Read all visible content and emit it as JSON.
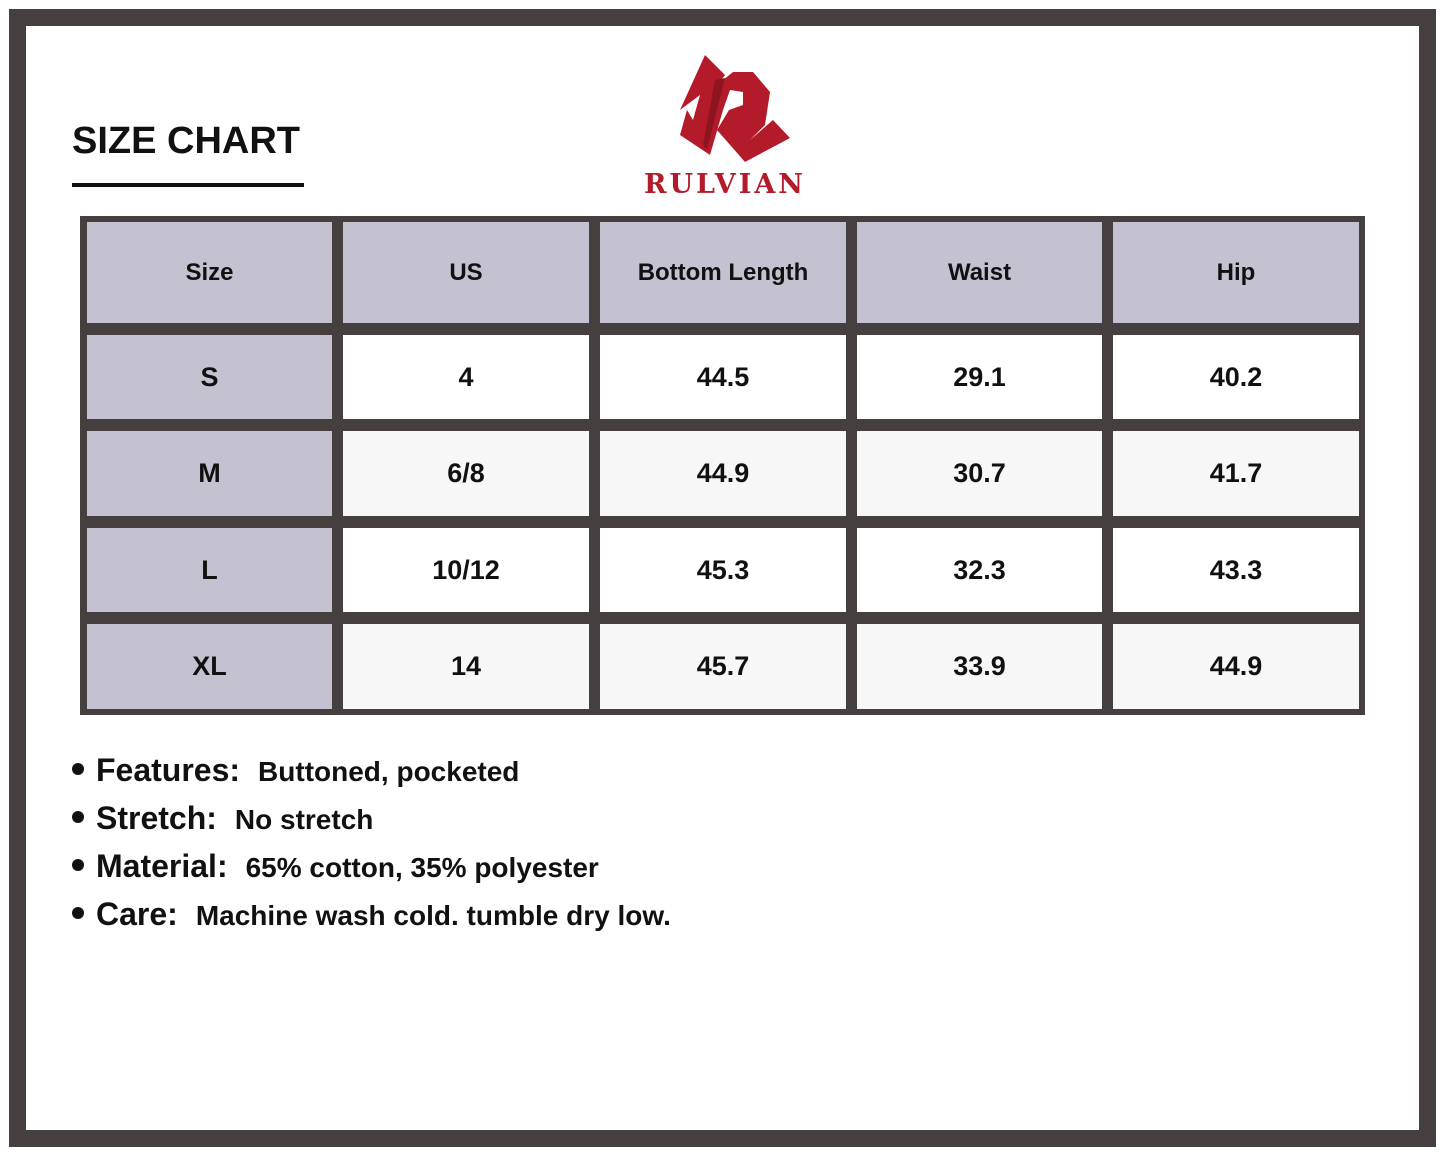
{
  "title": "SIZE CHART",
  "brand": {
    "name": "RULVIAN",
    "color": "#b31b2b"
  },
  "colors": {
    "frame": "#463f3f",
    "header_bg": "#c4c2d0",
    "alt_row_bg": "#f7f7f7"
  },
  "table": {
    "headers": [
      "Size",
      "US",
      "Bottom Length",
      "Waist",
      "Hip"
    ],
    "rows": [
      [
        "S",
        "4",
        "44.5",
        "29.1",
        "40.2"
      ],
      [
        "M",
        "6/8",
        "44.9",
        "30.7",
        "41.7"
      ],
      [
        "L",
        "10/12",
        "45.3",
        "32.3",
        "43.3"
      ],
      [
        "XL",
        "14",
        "45.7",
        "33.9",
        "44.9"
      ]
    ]
  },
  "features": [
    {
      "label": "Features:",
      "value": "Buttoned, pocketed"
    },
    {
      "label": "Stretch:",
      "value": "No stretch"
    },
    {
      "label": "Material:",
      "value": "65% cotton, 35% polyester"
    },
    {
      "label": "Care:",
      "value": "Machine wash cold. tumble dry low."
    }
  ]
}
